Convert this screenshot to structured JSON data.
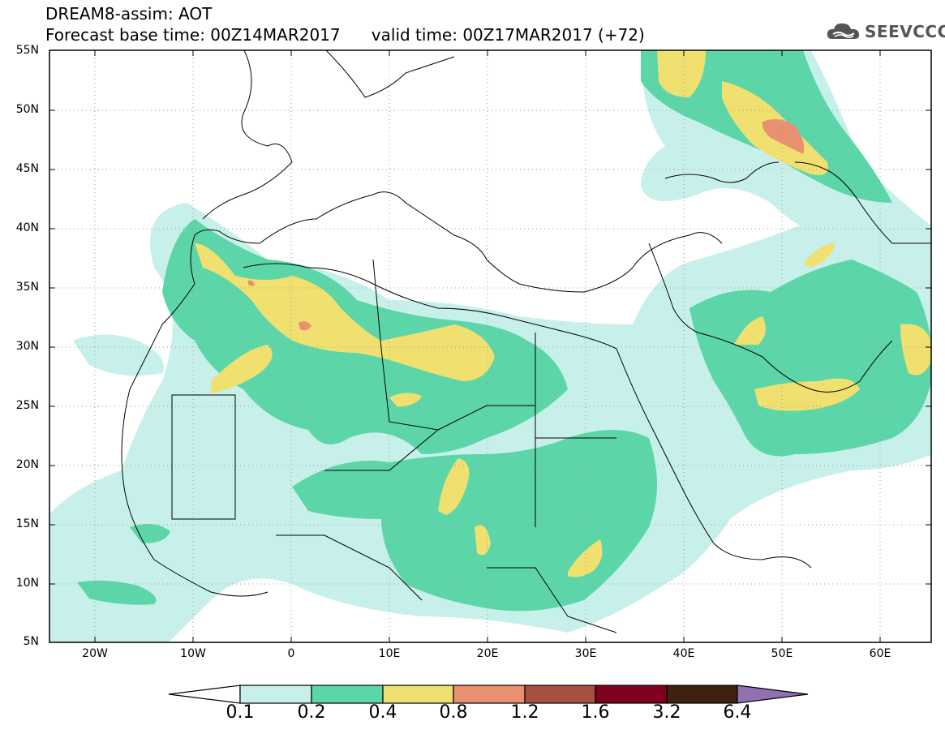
{
  "header": {
    "title_line1": "DREAM8-assim: AOT",
    "base_time_label": "Forecast base time: 00Z14MAR2017",
    "valid_time_label": "valid time: 00Z17MAR2017 (+72)"
  },
  "logo": {
    "text": "SEEVCCC",
    "icon": "cloud-logo-icon"
  },
  "map": {
    "lat_labels": [
      "55N",
      "50N",
      "45N",
      "40N",
      "35N",
      "30N",
      "25N",
      "20N",
      "15N",
      "10N",
      "5N"
    ],
    "lon_labels": [
      "20W",
      "10W",
      "0",
      "10E",
      "20E",
      "30E",
      "40E",
      "50E",
      "60E"
    ],
    "lat_range": [
      5,
      55
    ],
    "lon_range": [
      -25,
      65
    ],
    "grid": "dotted"
  },
  "colorbar": {
    "labels": [
      "0.1",
      "0.2",
      "0.4",
      "0.8",
      "1.2",
      "1.6",
      "3.2",
      "6.4"
    ],
    "colors": [
      "#c8f0ea",
      "#5cd6a8",
      "#f0e070",
      "#e89070",
      "#a85040",
      "#800020",
      "#402010",
      "#9070b0"
    ]
  },
  "field_colors": {
    "low": "#c8f0ea",
    "mid": "#5cd6a8",
    "high": "#f0e070",
    "very_high": "#e89070"
  }
}
